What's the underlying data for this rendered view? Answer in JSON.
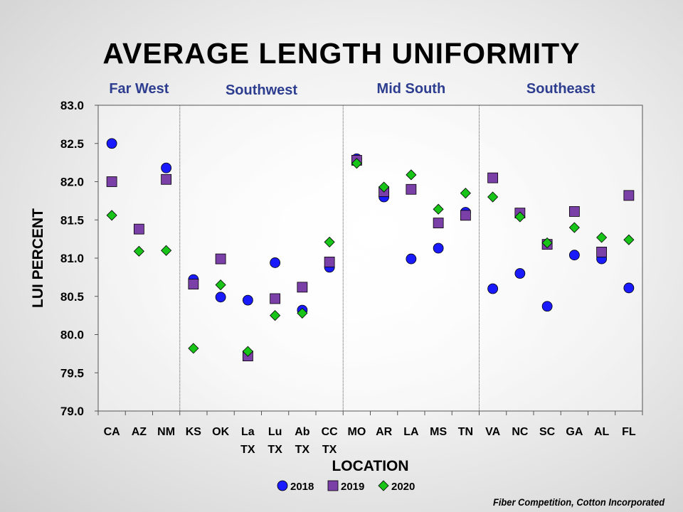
{
  "title": "AVERAGE LENGTH UNIFORMITY",
  "footer": "Fiber Competition, Cotton Incorporated",
  "colors": {
    "series_2018": "#1a1aff",
    "series_2019": "#7b3fa8",
    "series_2020": "#19c419",
    "region_label": "#2d3d8f"
  },
  "chart_data": {
    "type": "scatter",
    "xlabel": "LOCATION",
    "ylabel": "LUI PERCENT",
    "ylim": [
      79.0,
      83.0
    ],
    "yticks": [
      "79.0",
      "79.5",
      "80.0",
      "80.5",
      "81.0",
      "81.5",
      "82.0",
      "82.5",
      "83.0"
    ],
    "categories": [
      [
        "CA"
      ],
      [
        "AZ"
      ],
      [
        "NM"
      ],
      [
        "KS"
      ],
      [
        "OK"
      ],
      [
        "La",
        "TX"
      ],
      [
        "Lu",
        "TX"
      ],
      [
        "Ab",
        "TX"
      ],
      [
        "CC",
        "TX"
      ],
      [
        "MO"
      ],
      [
        "AR"
      ],
      [
        "LA"
      ],
      [
        "MS"
      ],
      [
        "TN"
      ],
      [
        "VA"
      ],
      [
        "NC"
      ],
      [
        "SC"
      ],
      [
        "GA"
      ],
      [
        "AL"
      ],
      [
        "FL"
      ]
    ],
    "regions": [
      {
        "label": "Far West",
        "start": 0,
        "end": 2
      },
      {
        "label": "Southwest",
        "start": 3,
        "end": 8
      },
      {
        "label": "Mid South",
        "start": 9,
        "end": 13
      },
      {
        "label": "Southeast",
        "start": 14,
        "end": 19
      }
    ],
    "series": [
      {
        "name": "2018",
        "marker": "circle",
        "values": [
          82.5,
          null,
          82.18,
          80.72,
          80.49,
          80.45,
          80.94,
          80.32,
          80.88,
          82.3,
          81.8,
          80.99,
          81.13,
          81.6,
          80.6,
          80.8,
          80.37,
          81.04,
          80.99,
          80.61
        ]
      },
      {
        "name": "2019",
        "marker": "square",
        "values": [
          82.0,
          81.38,
          82.03,
          80.66,
          80.99,
          79.72,
          80.47,
          80.62,
          80.95,
          82.28,
          81.87,
          81.9,
          81.46,
          81.56,
          82.05,
          81.59,
          81.18,
          81.61,
          81.08,
          81.82
        ]
      },
      {
        "name": "2020",
        "marker": "diamond",
        "values": [
          81.56,
          81.09,
          81.1,
          79.82,
          80.65,
          79.78,
          80.25,
          80.28,
          81.21,
          82.24,
          81.93,
          82.09,
          81.64,
          81.85,
          81.8,
          81.54,
          81.2,
          81.4,
          81.27,
          81.24
        ]
      }
    ],
    "legend_position": "bottom-center",
    "grid": false
  }
}
